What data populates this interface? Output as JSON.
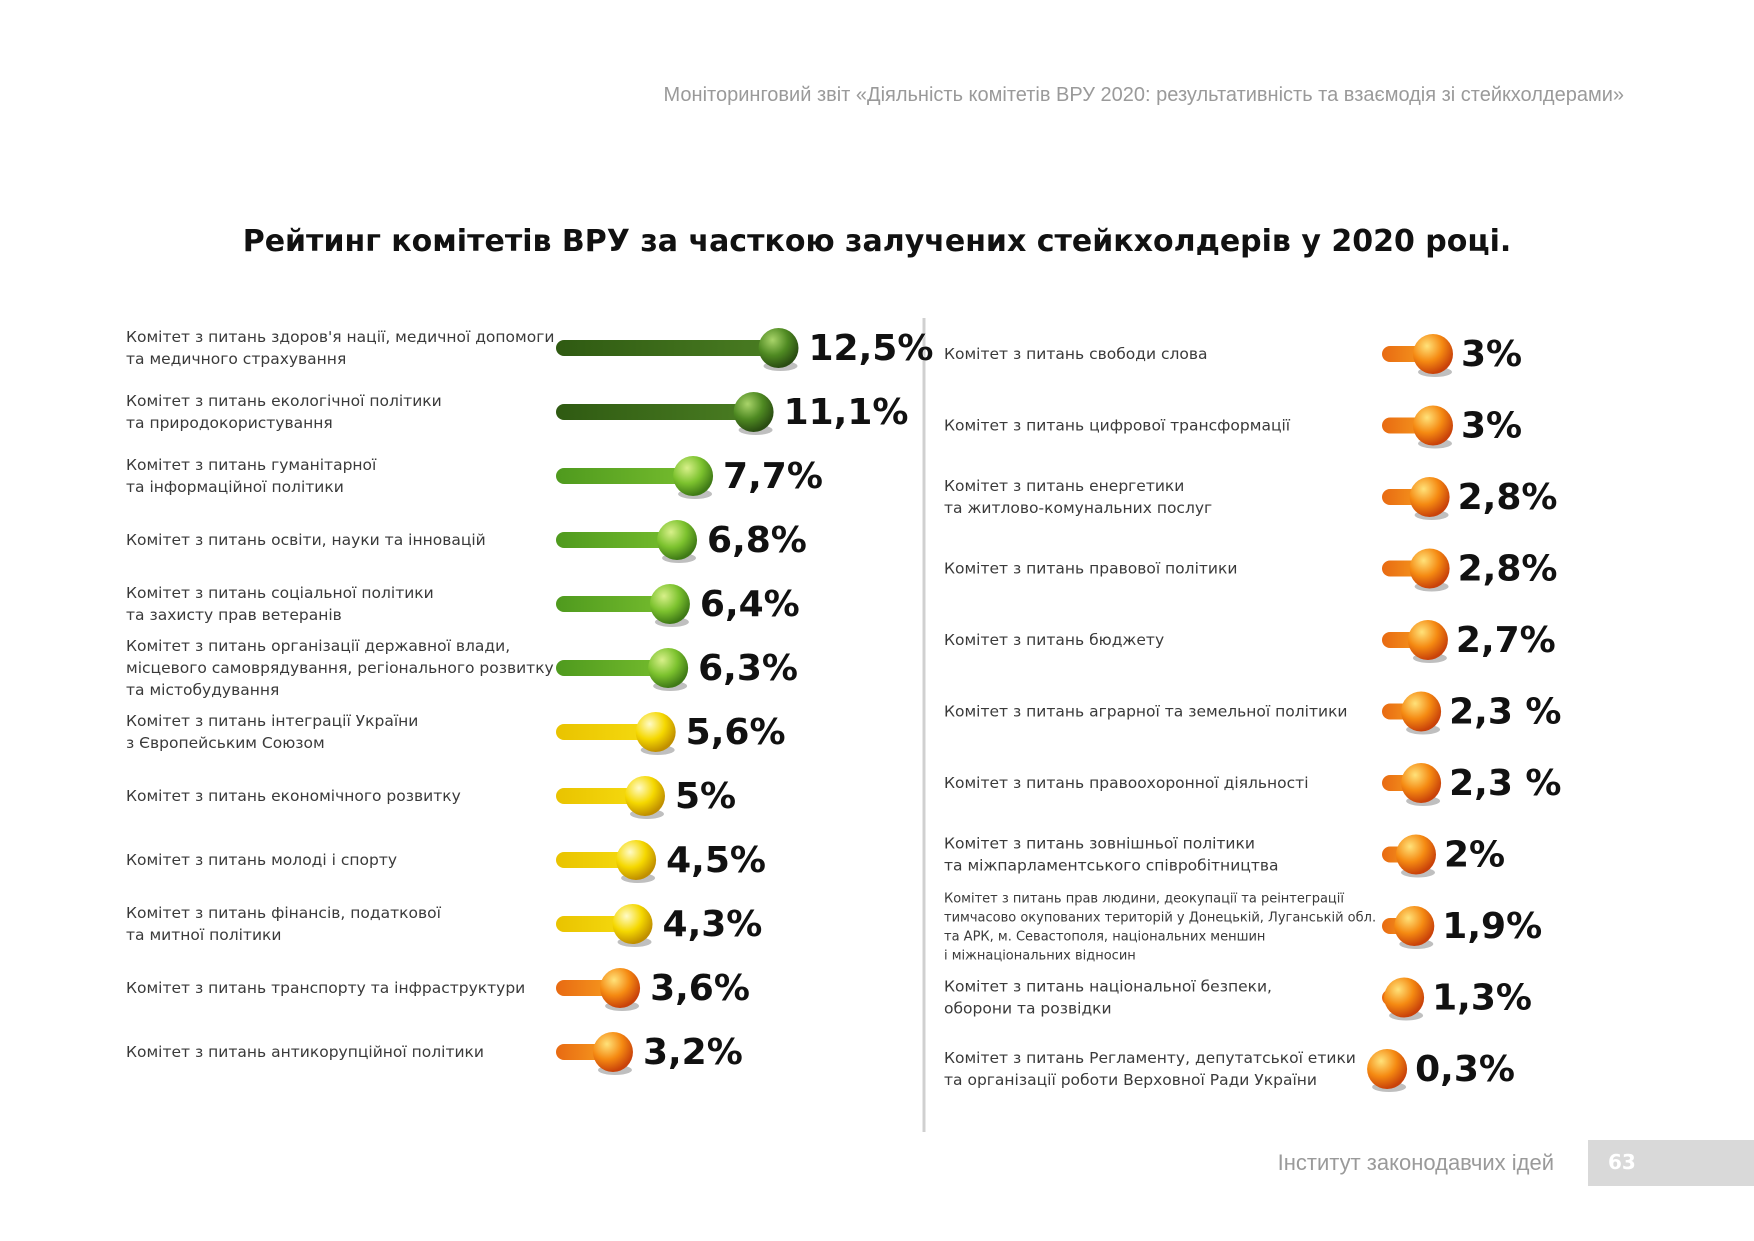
{
  "header": {
    "running_title": "Моніторинговий звіт «Діяльність комітетів ВРУ 2020: результативність та взаємодія зі стейкхолдерами»"
  },
  "footer": {
    "organization": "Інститут законодавчих ідей",
    "page_number": "63"
  },
  "colors": {
    "dark_green": "#3f6e1e",
    "green": "#6ab22a",
    "yellow": "#f2d000",
    "orange": "#f07a10",
    "separator": "#d0d0d0"
  },
  "chart_data": {
    "type": "bar",
    "title": "Рейтинг комітетів ВРУ за часткою залучених стейкхолдерів у 2020 році.",
    "unit": "%",
    "columns": [
      {
        "items": [
          {
            "label_lines": [
              "Комітет з питань здоров'я нації, медичної допомоги",
              "та медичного страхування"
            ],
            "value": 12.5,
            "value_label": "12,5%",
            "color": "dark_green"
          },
          {
            "label_lines": [
              "Комітет з питань екологічної політики",
              "та природокористування"
            ],
            "value": 11.1,
            "value_label": "11,1%",
            "color": "dark_green"
          },
          {
            "label_lines": [
              "Комітет з питань гуманітарної",
              "та інформаційної політики"
            ],
            "value": 7.7,
            "value_label": "7,7%",
            "color": "green"
          },
          {
            "label_lines": [
              "Комітет з питань освіти, науки та інновацій"
            ],
            "value": 6.8,
            "value_label": "6,8%",
            "color": "green"
          },
          {
            "label_lines": [
              "Комітет з питань соціальної політики",
              "та захисту прав ветеранів"
            ],
            "value": 6.4,
            "value_label": "6,4%",
            "color": "green"
          },
          {
            "label_lines": [
              "Комітет з питань організації державної влади,",
              "місцевого самоврядування, регіонального розвитку",
              "та містобудування"
            ],
            "value": 6.3,
            "value_label": "6,3%",
            "color": "green"
          },
          {
            "label_lines": [
              "Комітет з питань інтеграції України",
              "з Європейським Союзом"
            ],
            "value": 5.6,
            "value_label": "5,6%",
            "color": "yellow"
          },
          {
            "label_lines": [
              "Комітет з питань економічного розвитку"
            ],
            "value": 5,
            "value_label": "5%",
            "color": "yellow"
          },
          {
            "label_lines": [
              "Комітет з питань молоді і спорту"
            ],
            "value": 4.5,
            "value_label": "4,5%",
            "color": "yellow"
          },
          {
            "label_lines": [
              "Комітет з питань фінансів, податкової",
              "та митної політики"
            ],
            "value": 4.3,
            "value_label": "4,3%",
            "color": "yellow"
          },
          {
            "label_lines": [
              "Комітет з питань транспорту та інфраструктури"
            ],
            "value": 3.6,
            "value_label": "3,6%",
            "color": "orange"
          },
          {
            "label_lines": [
              "Комітет з питань антикорупційної політики"
            ],
            "value": 3.2,
            "value_label": "3,2%",
            "color": "orange"
          }
        ]
      },
      {
        "items": [
          {
            "label_lines": [
              "Комітет з питань свободи слова"
            ],
            "value": 3,
            "value_label": "3%",
            "color": "orange"
          },
          {
            "label_lines": [
              "Комітет з питань цифрової трансформації"
            ],
            "value": 3,
            "value_label": "3%",
            "color": "orange"
          },
          {
            "label_lines": [
              "Комітет з питань енергетики",
              "та житлово-комунальних послуг"
            ],
            "value": 2.8,
            "value_label": "2,8%",
            "color": "orange"
          },
          {
            "label_lines": [
              "Комітет з питань правової політики"
            ],
            "value": 2.8,
            "value_label": "2,8%",
            "color": "orange"
          },
          {
            "label_lines": [
              "Комітет з питань бюджету"
            ],
            "value": 2.7,
            "value_label": "2,7%",
            "color": "orange"
          },
          {
            "label_lines": [
              "Комітет з питань аграрної та земельної політики"
            ],
            "value": 2.3,
            "value_label": "2,3 %",
            "color": "orange"
          },
          {
            "label_lines": [
              "Комітет з питань правоохоронної діяльності"
            ],
            "value": 2.3,
            "value_label": "2,3 %",
            "color": "orange"
          },
          {
            "label_lines": [
              "Комітет з питань зовнішньої політики",
              "та міжпарламентського співробітництва"
            ],
            "value": 2,
            "value_label": "2%",
            "color": "orange"
          },
          {
            "label_lines": [
              "Комітет з питань прав людини, деокупації та реінтеграції",
              "тимчасово окупованих територій у Донецькій, Луганській обл.",
              "та АРК, м. Севастополя, національних меншин",
              "і міжнаціональних відносин"
            ],
            "value": 1.9,
            "value_label": "1,9%",
            "color": "orange"
          },
          {
            "label_lines": [
              "Комітет з питань національної безпеки,",
              "оборони та розвідки"
            ],
            "value": 1.3,
            "value_label": "1,3%",
            "color": "orange"
          },
          {
            "label_lines": [
              "Комітет з питань Регламенту, депутатської етики",
              "та організації роботи Верховної Ради України"
            ],
            "value": 0.3,
            "value_label": "0,3%",
            "color": "orange"
          }
        ]
      }
    ]
  }
}
